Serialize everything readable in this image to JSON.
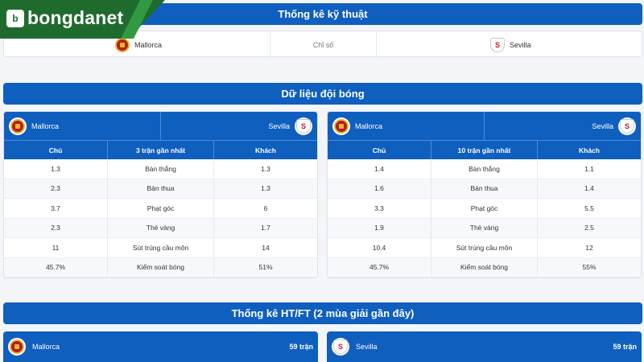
{
  "brand": {
    "name": "bongdanet",
    "mark": "b"
  },
  "tech_stats": {
    "title": "Thống kê kỹ thuật",
    "home_team": "Mallorca",
    "label": "Chỉ số",
    "away_team": "Sevilla"
  },
  "team_data": {
    "title": "Dữ liệu đội bóng",
    "panels": [
      {
        "home_team": "Mallorca",
        "away_team": "Sevilla",
        "columns": [
          "Chủ",
          "3 trận gần nhất",
          "Khách"
        ],
        "rows": [
          [
            "1.3",
            "Bàn thắng",
            "1.3"
          ],
          [
            "2.3",
            "Bàn thua",
            "1.3"
          ],
          [
            "3.7",
            "Phạt góc",
            "6"
          ],
          [
            "2.3",
            "Thẻ vàng",
            "1.7"
          ],
          [
            "11",
            "Sút trúng cầu môn",
            "14"
          ],
          [
            "45.7%",
            "Kiểm soát bóng",
            "51%"
          ]
        ]
      },
      {
        "home_team": "Mallorca",
        "away_team": "Sevilla",
        "columns": [
          "Chủ",
          "10 trận gần nhất",
          "Khách"
        ],
        "rows": [
          [
            "1.4",
            "Bàn thắng",
            "1.1"
          ],
          [
            "1.6",
            "Bàn thua",
            "1.4"
          ],
          [
            "3.3",
            "Phạt góc",
            "5.5"
          ],
          [
            "1.9",
            "Thẻ vàng",
            "2.5"
          ],
          [
            "10.4",
            "Sút trúng cầu môn",
            "12"
          ],
          [
            "45.7%",
            "Kiểm soát bóng",
            "55%"
          ]
        ]
      }
    ]
  },
  "htft": {
    "title": "Thống kê HT/FT (2 mùa giải gần đây)",
    "home": {
      "team": "Mallorca",
      "matches": "59 trận"
    },
    "away": {
      "team": "Sevilla",
      "matches": "59 trận"
    }
  },
  "colors": {
    "primary": "#0f5fbf",
    "brand_green": "#1f6b2e",
    "mallorca": "#b01f24",
    "sevilla": "#c8102e"
  },
  "icons": {
    "home_crest": "mallorca-crest-icon",
    "away_crest": "sevilla-crest-icon",
    "logo": "bongdanet-logo-icon"
  }
}
